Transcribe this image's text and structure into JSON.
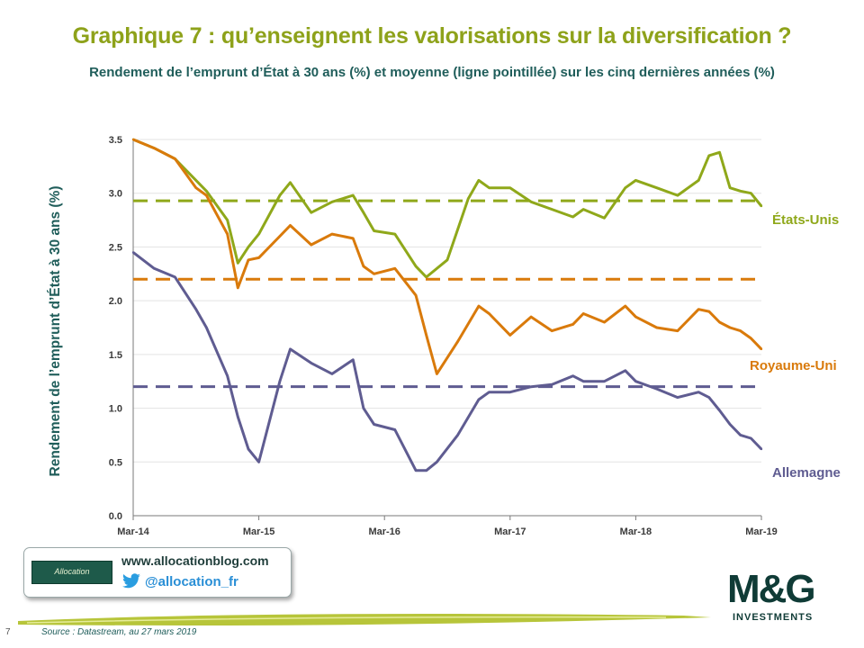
{
  "header": {
    "title": "Graphique 7 : qu’enseignent les valorisations sur la diversification ?",
    "subtitle": "Rendement de l’emprunt d’État à 30 ans (%) et moyenne (ligne pointillée) sur les cinq dernières années (%)"
  },
  "chart_data": {
    "type": "line",
    "title": "",
    "xlabel": "",
    "ylabel": "Rendement de l’emprunt d’État à 30 ans (%)",
    "x_ticks": [
      "Mar-14",
      "Mar-15",
      "Mar-16",
      "Mar-17",
      "Mar-18",
      "Mar-19"
    ],
    "y_ticks": [
      "0.0",
      "0.5",
      "1.0",
      "1.5",
      "2.0",
      "2.5",
      "3.0",
      "3.5"
    ],
    "ylim": [
      0,
      3.5
    ],
    "xlim": [
      "2014-03",
      "2019-03"
    ],
    "grid": "horizontal",
    "legend": "none",
    "series": [
      {
        "name": "États-Unis",
        "color": "#8fa81a",
        "average": 2.93,
        "x": [
          "2014-03",
          "2014-05",
          "2014-07",
          "2014-09",
          "2014-10",
          "2014-12",
          "2015-01",
          "2015-02",
          "2015-03",
          "2015-05",
          "2015-06",
          "2015-08",
          "2015-10",
          "2015-12",
          "2016-01",
          "2016-02",
          "2016-04",
          "2016-06",
          "2016-07",
          "2016-09",
          "2016-11",
          "2016-12",
          "2017-01",
          "2017-03",
          "2017-05",
          "2017-07",
          "2017-09",
          "2017-10",
          "2017-12",
          "2018-02",
          "2018-03",
          "2018-05",
          "2018-07",
          "2018-09",
          "2018-10",
          "2018-11",
          "2018-12",
          "2019-01",
          "2019-02",
          "2019-03"
        ],
        "values": [
          3.5,
          3.42,
          3.32,
          3.12,
          3.02,
          2.75,
          2.35,
          2.5,
          2.62,
          2.98,
          3.1,
          2.82,
          2.92,
          2.98,
          2.82,
          2.65,
          2.62,
          2.32,
          2.22,
          2.38,
          2.95,
          3.12,
          3.05,
          3.05,
          2.92,
          2.85,
          2.78,
          2.85,
          2.77,
          3.05,
          3.12,
          3.05,
          2.98,
          3.12,
          3.35,
          3.38,
          3.05,
          3.02,
          3.0,
          2.88
        ]
      },
      {
        "name": "Royaume-Uni",
        "color": "#d97a0b",
        "average": 2.2,
        "x": [
          "2014-03",
          "2014-05",
          "2014-07",
          "2014-09",
          "2014-10",
          "2014-12",
          "2015-01",
          "2015-02",
          "2015-03",
          "2015-05",
          "2015-06",
          "2015-08",
          "2015-10",
          "2015-12",
          "2016-01",
          "2016-02",
          "2016-04",
          "2016-06",
          "2016-07",
          "2016-08",
          "2016-10",
          "2016-12",
          "2017-01",
          "2017-03",
          "2017-05",
          "2017-07",
          "2017-09",
          "2017-10",
          "2017-12",
          "2018-02",
          "2018-03",
          "2018-05",
          "2018-07",
          "2018-09",
          "2018-10",
          "2018-11",
          "2018-12",
          "2019-01",
          "2019-02",
          "2019-03"
        ],
        "values": [
          3.5,
          3.42,
          3.32,
          3.05,
          2.98,
          2.62,
          2.12,
          2.38,
          2.4,
          2.6,
          2.7,
          2.52,
          2.62,
          2.58,
          2.32,
          2.25,
          2.3,
          2.05,
          1.68,
          1.32,
          1.62,
          1.95,
          1.88,
          1.68,
          1.85,
          1.72,
          1.78,
          1.88,
          1.8,
          1.95,
          1.85,
          1.75,
          1.72,
          1.92,
          1.9,
          1.8,
          1.75,
          1.72,
          1.65,
          1.55
        ]
      },
      {
        "name": "Allemagne",
        "color": "#5f5c91",
        "average": 1.2,
        "x": [
          "2014-03",
          "2014-05",
          "2014-07",
          "2014-09",
          "2014-10",
          "2014-12",
          "2015-01",
          "2015-02",
          "2015-03",
          "2015-05",
          "2015-06",
          "2015-08",
          "2015-10",
          "2015-12",
          "2016-01",
          "2016-02",
          "2016-04",
          "2016-06",
          "2016-07",
          "2016-08",
          "2016-10",
          "2016-12",
          "2017-01",
          "2017-03",
          "2017-05",
          "2017-07",
          "2017-09",
          "2017-10",
          "2017-12",
          "2018-02",
          "2018-03",
          "2018-05",
          "2018-07",
          "2018-09",
          "2018-10",
          "2018-11",
          "2018-12",
          "2019-01",
          "2019-02",
          "2019-03"
        ],
        "values": [
          2.45,
          2.3,
          2.22,
          1.92,
          1.75,
          1.3,
          0.92,
          0.62,
          0.5,
          1.25,
          1.55,
          1.42,
          1.32,
          1.45,
          1.0,
          0.85,
          0.8,
          0.42,
          0.42,
          0.5,
          0.75,
          1.08,
          1.15,
          1.15,
          1.2,
          1.22,
          1.3,
          1.25,
          1.25,
          1.35,
          1.25,
          1.18,
          1.1,
          1.15,
          1.1,
          0.98,
          0.85,
          0.75,
          0.72,
          0.62
        ]
      }
    ]
  },
  "series_labels": {
    "us": "États-Unis",
    "uk": "Royaume-Uni",
    "de": "Allemagne"
  },
  "promo": {
    "logo_text": "Allocation",
    "url": "www.allocationblog.com",
    "handle": "@allocation_fr",
    "icon": "twitter-bird-icon"
  },
  "footer": {
    "page_number": "7",
    "source": "Source : Datastream, au 27 mars 2019"
  },
  "brand": {
    "logo_text": "M&G",
    "logo_sub": "INVESTMENTS",
    "accent_green": "#8ea21a",
    "teal": "#1f5d5a"
  }
}
